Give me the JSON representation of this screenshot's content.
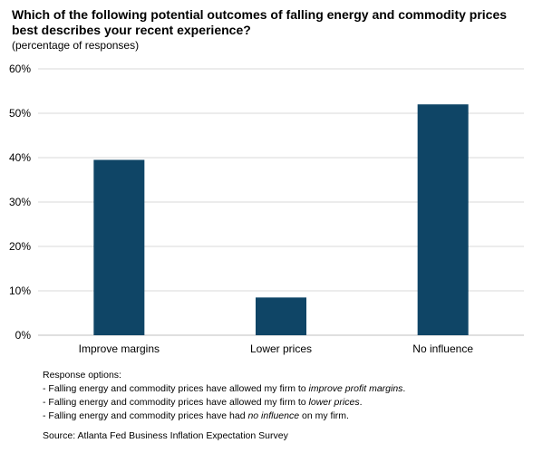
{
  "header": {
    "title": "Which of the following potential outcomes of falling energy and commodity prices best describes your recent experience?",
    "subtitle": "(percentage of responses)"
  },
  "chart_data": {
    "type": "bar",
    "title": "Which of the following potential outcomes of falling energy and commodity prices best describes your recent experience?",
    "subtitle": "(percentage of responses)",
    "categories": [
      "Improve margins",
      "Lower prices",
      "No influence"
    ],
    "values": [
      39.5,
      8.5,
      52
    ],
    "ylim": [
      0,
      60
    ],
    "yticks": [
      "0%",
      "10%",
      "20%",
      "30%",
      "40%",
      "50%",
      "60%"
    ],
    "ytick_values": [
      0,
      10,
      20,
      30,
      40,
      50,
      60
    ],
    "xlabel": "",
    "ylabel": "",
    "bar_color": "#0f4566",
    "grid": true,
    "legend": "none"
  },
  "notes": {
    "heading": "Response options:",
    "items": [
      {
        "pre": "- Falling energy and commodity prices have allowed my firm to ",
        "em": "improve profit margins",
        "post": "."
      },
      {
        "pre": "- Falling energy and commodity prices have allowed my firm to ",
        "em": "lower prices",
        "post": "."
      },
      {
        "pre": "- Falling energy and commodity prices have had ",
        "em": "no influence",
        "post": " on my firm."
      }
    ]
  },
  "source": "Source: Atlanta Fed Business Inflation Expectation Survey"
}
